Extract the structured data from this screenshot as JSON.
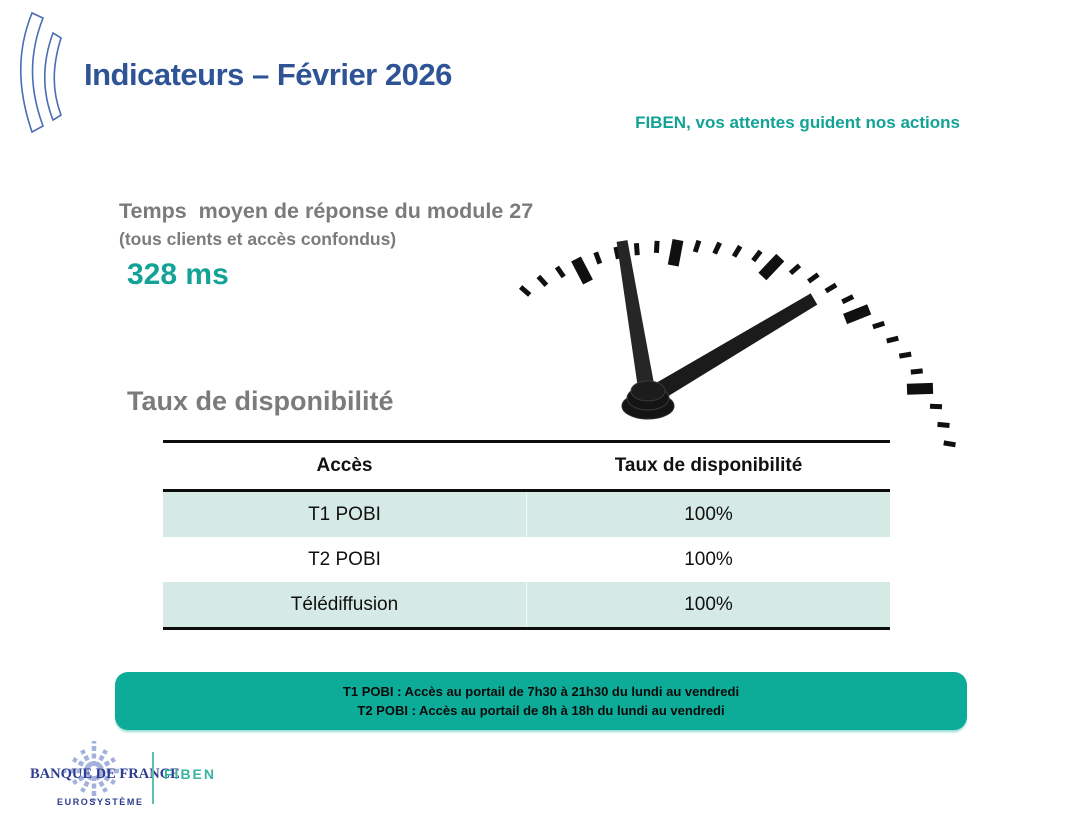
{
  "header": {
    "title": "Indicateurs – Février 2026",
    "tagline": "FIBEN, vos attentes guident nos actions"
  },
  "response_time": {
    "title": "Temps  moyen de réponse du module 27",
    "subtitle": "(tous clients et accès confondus)",
    "value": "328 ms"
  },
  "availability": {
    "heading": "Taux de disponibilité",
    "table": {
      "columns": [
        "Accès",
        "Taux de disponibilité"
      ],
      "rows": [
        {
          "access": "T1 POBI",
          "rate": "100%"
        },
        {
          "access": "T2 POBI",
          "rate": "100%"
        },
        {
          "access": "Télédiffusion",
          "rate": "100%"
        }
      ]
    }
  },
  "notes": {
    "line1": "T1 POBI : Accès au portail de 7h30 à 21h30 du lundi au vendredi",
    "line2": "T2 POBI : Accès au portail de 8h à 18h du lundi au vendredi"
  },
  "footer": {
    "bank_name": "BANQUE DE FRANCE",
    "subbrand": "EUROSYSTÈME",
    "product": "FIBEN"
  },
  "icons": {
    "crest": "bdf-crescent-logo-icon",
    "clock": "clock-hands-image",
    "starburst": "bdf-starburst-logo-icon"
  },
  "colors": {
    "title_blue": "#2E5496",
    "accent_teal": "#12A296",
    "banner_teal": "#0CAC99",
    "table_row_teal": "#D5E9E5",
    "text_gray": "#7B7B7B",
    "logo_navy": "#2C3C90",
    "fiben_teal": "#3BB3A1"
  }
}
